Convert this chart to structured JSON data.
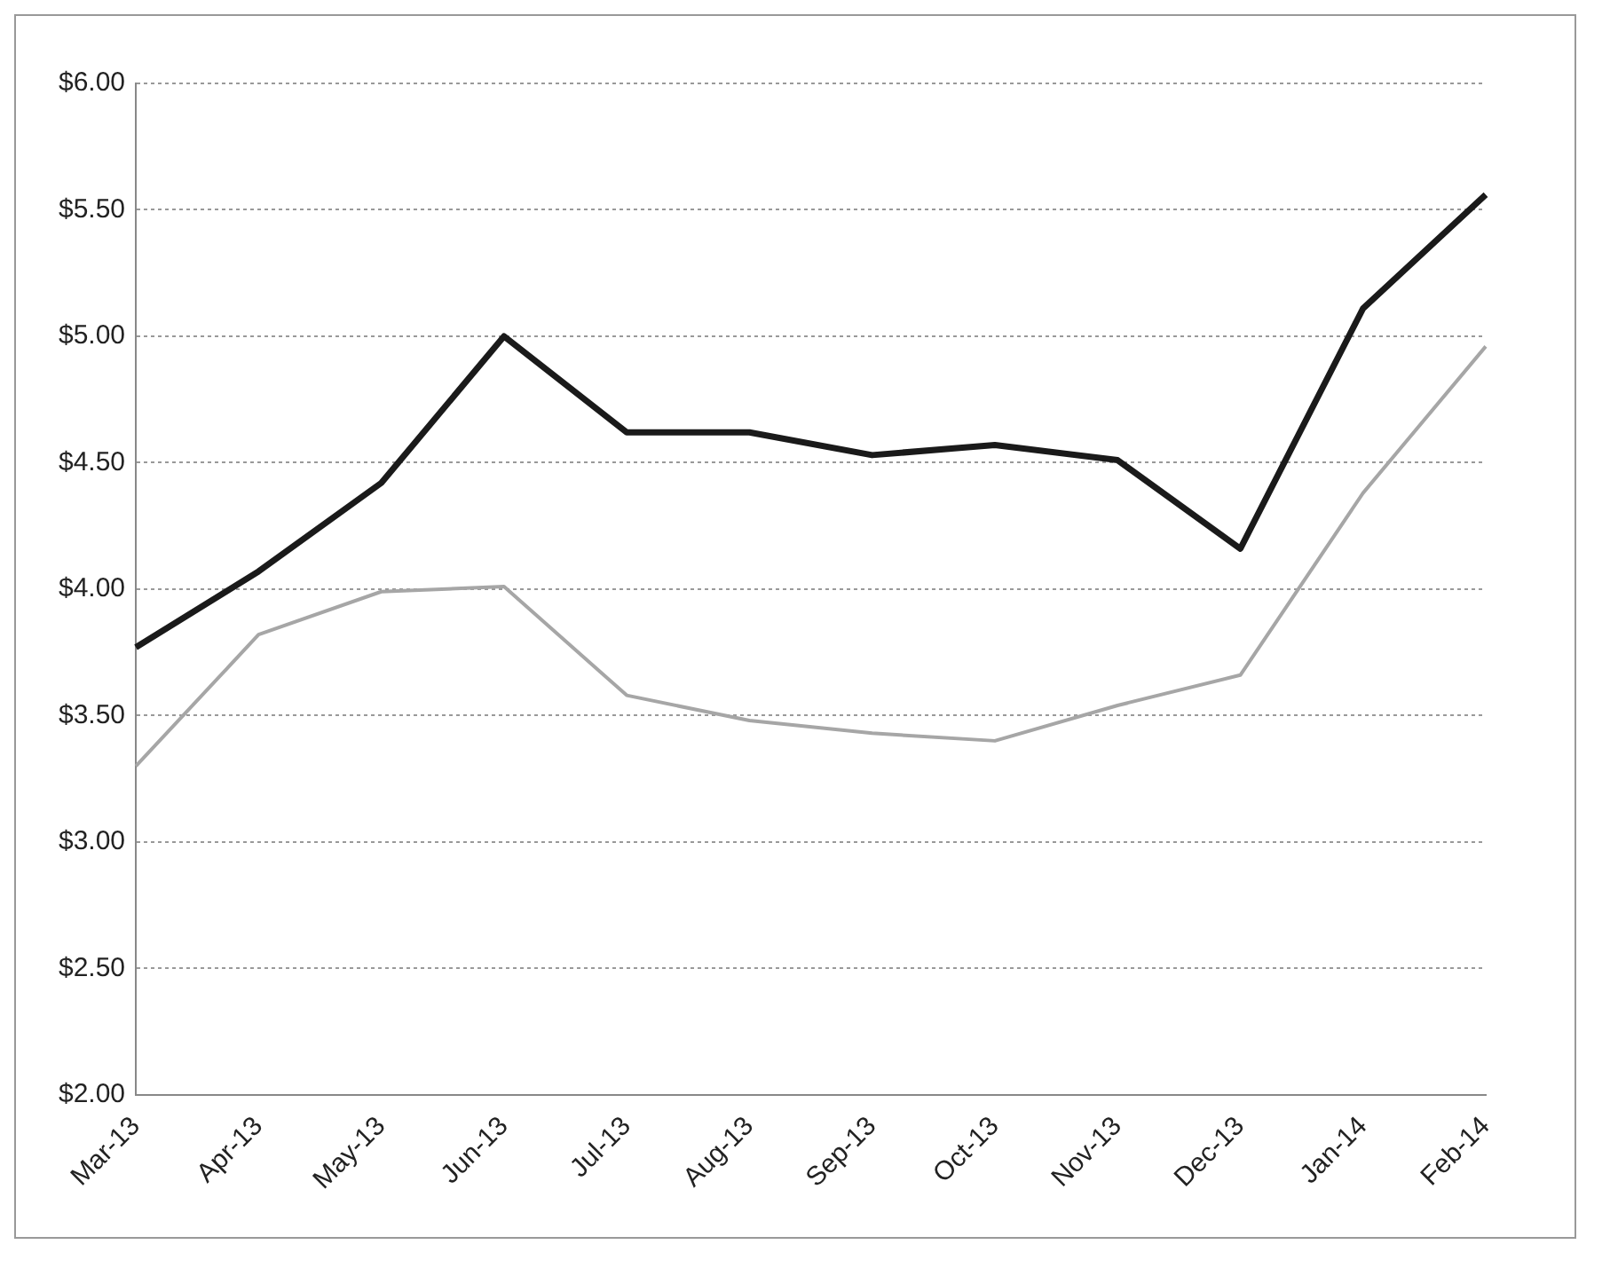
{
  "chart_data": {
    "type": "line",
    "categories": [
      "Mar-13",
      "Apr-13",
      "May-13",
      "Jun-13",
      "Jul-13",
      "Aug-13",
      "Sep-13",
      "Oct-13",
      "Nov-13",
      "Dec-13",
      "Jan-14",
      "Feb-14"
    ],
    "series": [
      {
        "color": "#1a1a1a",
        "values": [
          3.77,
          4.07,
          4.42,
          5.0,
          4.62,
          4.62,
          4.53,
          4.57,
          4.51,
          4.16,
          5.11,
          5.56
        ]
      },
      {
        "color": "#a6a6a6",
        "values": [
          3.3,
          3.82,
          3.99,
          4.01,
          3.58,
          3.48,
          3.43,
          3.4,
          3.54,
          3.66,
          4.38,
          4.96
        ]
      }
    ],
    "ylim": [
      2,
      6
    ],
    "yticks": [
      {
        "value": 2,
        "label": "$2.00"
      },
      {
        "value": 2.5,
        "label": "$2.50"
      },
      {
        "value": 3,
        "label": "$3.00"
      },
      {
        "value": 3.5,
        "label": "$3.50"
      },
      {
        "value": 4,
        "label": "$4.00"
      },
      {
        "value": 4.5,
        "label": "$4.50"
      },
      {
        "value": 5,
        "label": "$5.00"
      },
      {
        "value": 5.5,
        "label": "$5.50"
      },
      {
        "value": 6,
        "label": "$6.00"
      }
    ],
    "grid": "y",
    "legend": false,
    "marker": "none",
    "line_style": "solid"
  }
}
